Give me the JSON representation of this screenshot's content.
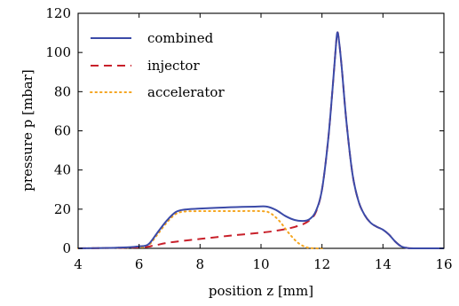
{
  "chart_data": {
    "type": "line",
    "xlabel": "position z [mm]",
    "ylabel": "pressure p [mbar]",
    "xlim": [
      4,
      16
    ],
    "ylim": [
      0,
      120
    ],
    "xticks": [
      "4",
      "6",
      "8",
      "10",
      "12",
      "14",
      "16"
    ],
    "yticks": [
      "0",
      "20",
      "40",
      "60",
      "80",
      "100",
      "120"
    ],
    "grid": false,
    "legend_position": "top-left",
    "series": [
      {
        "name": "combined",
        "color": "#3b4aa8",
        "style": "solid",
        "points": [
          [
            4,
            0
          ],
          [
            5,
            0.2
          ],
          [
            5.6,
            0.5
          ],
          [
            6,
            1
          ],
          [
            6.3,
            2
          ],
          [
            6.6,
            8
          ],
          [
            6.9,
            14
          ],
          [
            7.2,
            18.5
          ],
          [
            7.5,
            19.8
          ],
          [
            8,
            20.3
          ],
          [
            9,
            21
          ],
          [
            9.8,
            21.3
          ],
          [
            10.2,
            21.3
          ],
          [
            10.5,
            19.5
          ],
          [
            10.8,
            16.5
          ],
          [
            11.1,
            14.5
          ],
          [
            11.4,
            14
          ],
          [
            11.6,
            15
          ],
          [
            11.8,
            19
          ],
          [
            12,
            30
          ],
          [
            12.2,
            55
          ],
          [
            12.35,
            82
          ],
          [
            12.45,
            102
          ],
          [
            12.5,
            110
          ],
          [
            12.55,
            107
          ],
          [
            12.65,
            92
          ],
          [
            12.8,
            65
          ],
          [
            13,
            38
          ],
          [
            13.2,
            24
          ],
          [
            13.4,
            17
          ],
          [
            13.6,
            13
          ],
          [
            13.8,
            11
          ],
          [
            14,
            9.5
          ],
          [
            14.2,
            7
          ],
          [
            14.4,
            3.5
          ],
          [
            14.6,
            1
          ],
          [
            14.8,
            0.2
          ],
          [
            15,
            0
          ],
          [
            16,
            0
          ]
        ]
      },
      {
        "name": "injector",
        "color": "#c8202a",
        "style": "dashed",
        "points": [
          [
            4,
            0
          ],
          [
            6,
            0.5
          ],
          [
            6.5,
            1.5
          ],
          [
            7,
            3
          ],
          [
            8,
            4.8
          ],
          [
            9,
            6.5
          ],
          [
            10,
            8
          ],
          [
            10.5,
            9
          ],
          [
            11,
            10.5
          ],
          [
            11.4,
            12.5
          ],
          [
            11.6,
            14.5
          ],
          [
            11.8,
            18.5
          ],
          [
            12,
            30
          ],
          [
            12.2,
            55
          ],
          [
            12.35,
            82
          ],
          [
            12.45,
            102
          ],
          [
            12.5,
            110
          ],
          [
            12.55,
            107
          ],
          [
            12.65,
            92
          ],
          [
            12.8,
            65
          ],
          [
            13,
            38
          ],
          [
            13.2,
            24
          ],
          [
            13.4,
            17
          ],
          [
            13.6,
            13
          ],
          [
            13.8,
            11
          ],
          [
            14,
            9.5
          ],
          [
            14.2,
            7
          ],
          [
            14.4,
            3.5
          ],
          [
            14.6,
            1
          ],
          [
            14.8,
            0.2
          ],
          [
            15,
            0
          ],
          [
            16,
            0
          ]
        ]
      },
      {
        "name": "accelerator",
        "color": "#f5a51f",
        "style": "dotted",
        "points": [
          [
            4,
            0
          ],
          [
            6,
            0.5
          ],
          [
            6.3,
            1.5
          ],
          [
            6.6,
            7
          ],
          [
            6.9,
            13
          ],
          [
            7.2,
            17.5
          ],
          [
            7.5,
            18.8
          ],
          [
            8,
            19
          ],
          [
            9,
            19
          ],
          [
            10,
            19
          ],
          [
            10.3,
            18
          ],
          [
            10.6,
            14
          ],
          [
            10.9,
            8
          ],
          [
            11.2,
            3
          ],
          [
            11.5,
            0.5
          ],
          [
            11.8,
            0
          ],
          [
            12,
            0
          ]
        ]
      }
    ]
  }
}
